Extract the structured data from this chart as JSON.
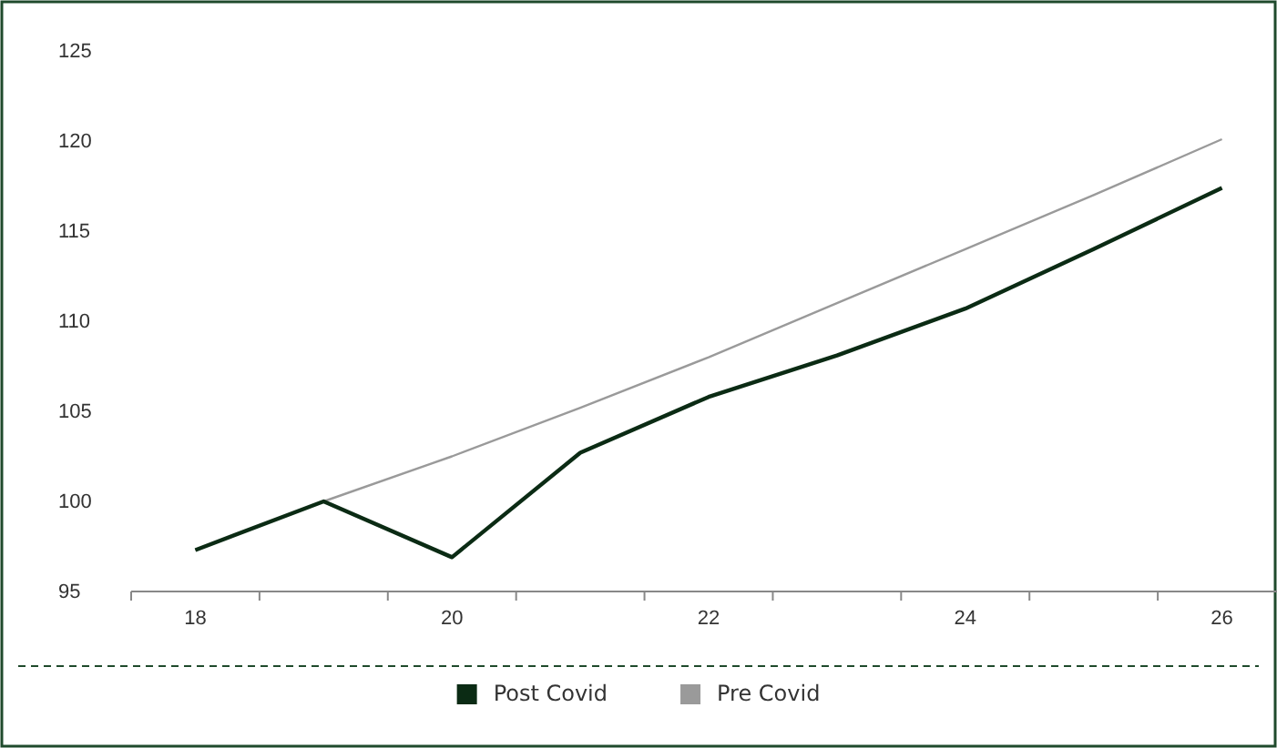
{
  "chart_data": {
    "type": "line",
    "categories": [
      "18",
      null,
      "20",
      null,
      "22",
      null,
      "24",
      null,
      "26"
    ],
    "series": [
      {
        "name": "Post Covid",
        "color": "#0b2b14",
        "values": [
          97.3,
          100,
          96.9,
          102.7,
          105.8,
          108.1,
          110.7,
          114.0,
          117.4
        ]
      },
      {
        "name": "Pre Covid",
        "color": "#9a9a9a",
        "values": [
          97.3,
          100,
          102.5,
          105.2,
          108.0,
          111.0,
          114.0,
          117.0,
          120.1
        ]
      }
    ],
    "ylim": [
      95,
      125
    ],
    "yticks": [
      95,
      100,
      105,
      110,
      115,
      120,
      125
    ],
    "grid": false,
    "legend": "bottom",
    "marker": "none",
    "line_style": "solid"
  }
}
